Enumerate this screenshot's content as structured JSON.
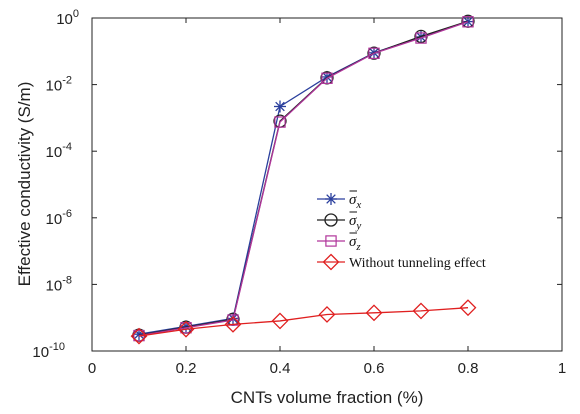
{
  "chart_data": {
    "type": "line",
    "title": "",
    "xlabel": "CNTs volume fraction (%)",
    "ylabel": "Effective conductivity (S/m)",
    "xlim": [
      0,
      1
    ],
    "ylim": [
      1e-10,
      1
    ],
    "yscale": "log",
    "grid": false,
    "legend_position": "center-right",
    "x_ticks": [
      "0",
      "0.2",
      "0.4",
      "0.6",
      "0.8",
      "1"
    ],
    "y_ticks": [
      {
        "base": "10",
        "exp": "0"
      },
      {
        "base": "10",
        "exp": "-2"
      },
      {
        "base": "10",
        "exp": "-4"
      },
      {
        "base": "10",
        "exp": "-6"
      },
      {
        "base": "10",
        "exp": "-8"
      },
      {
        "base": "10",
        "exp": "-10"
      }
    ],
    "y_tick_exponents": [
      0,
      -2,
      -4,
      -6,
      -8,
      -10
    ],
    "x_tick_values": [
      0,
      0.2,
      0.4,
      0.6,
      0.8,
      1
    ],
    "x": [
      0.1,
      0.2,
      0.3,
      0.4,
      0.5,
      0.6,
      0.7,
      0.8
    ],
    "series": [
      {
        "name": "σx",
        "legend_base": "σ",
        "legend_sub": "x",
        "color": "#2a3f9d",
        "marker": "asterisk",
        "values": [
          3.2e-10,
          5.5e-10,
          9.5e-10,
          0.0022,
          0.017,
          0.09,
          0.27,
          0.78
        ]
      },
      {
        "name": "σy",
        "legend_base": "σ",
        "legend_sub": "y",
        "color": "#222222",
        "marker": "circle",
        "values": [
          3e-10,
          5.2e-10,
          9e-10,
          0.0008,
          0.016,
          0.088,
          0.28,
          0.8
        ]
      },
      {
        "name": "σz",
        "legend_base": "σ",
        "legend_sub": "z",
        "color": "#b0359b",
        "marker": "square",
        "values": [
          2.9e-10,
          5e-10,
          8.5e-10,
          0.00075,
          0.0155,
          0.087,
          0.25,
          0.77
        ]
      },
      {
        "name": "Without tunneling effect",
        "legend_base": "Without tunneling effect",
        "legend_sub": "",
        "color": "#e02020",
        "marker": "diamond",
        "values": [
          2.8e-10,
          4.5e-10,
          6.3e-10,
          8e-10,
          1.25e-09,
          1.4e-09,
          1.6e-09,
          2e-09
        ]
      }
    ]
  }
}
